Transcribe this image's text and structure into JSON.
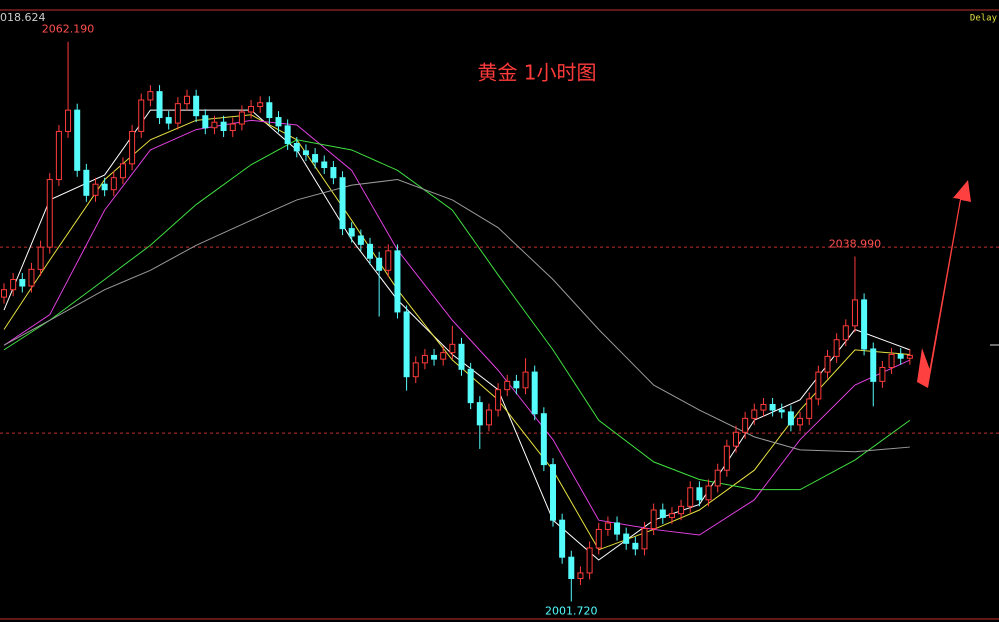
{
  "chart_data": {
    "type": "candlestick",
    "title": "黄金 1小时图",
    "corner_text": "018.624",
    "status_text": "Delay",
    "ylim": [
      1999.5,
      2066.7
    ],
    "up_color": "#ff3b3b",
    "down_color": "#54fcfc",
    "open": [
      2034.6,
      2035.4,
      2036.5,
      2035.8,
      2037.6,
      2040.0,
      2047.3,
      2052.5,
      2054.8,
      2048.3,
      2045.6,
      2046.8,
      2046.2,
      2047.5,
      2049.0,
      2052.5,
      2055.9,
      2056.8,
      2054.0,
      2053.4,
      2055.5,
      2056.3,
      2054.2,
      2052.9,
      2053.5,
      2052.6,
      2053.3,
      2054.6,
      2055.2,
      2055.6,
      2054.0,
      2053.1,
      2051.2,
      2050.4,
      2050.0,
      2049.2,
      2048.6,
      2047.5,
      2042.0,
      2041.2,
      2040.3,
      2038.8,
      2037.5,
      2039.6,
      2033.0,
      2026.0,
      2027.5,
      2028.3,
      2027.9,
      2028.6,
      2029.5,
      2026.8,
      2023.2,
      2020.8,
      2022.4,
      2024.6,
      2025.5,
      2024.8,
      2026.5,
      2022.0,
      2016.5,
      2010.5,
      2006.5,
      2004.2,
      2004.8,
      2007.5,
      2009.5,
      2010.2,
      2009.0,
      2008.0,
      2007.4,
      2009.6,
      2011.6,
      2010.8,
      2011.2,
      2012.0,
      2014.0,
      2012.7,
      2014.2,
      2015.9,
      2018.5,
      2020.0,
      2021.5,
      2022.4,
      2023.0,
      2022.4,
      2022.2,
      2020.8,
      2021.5,
      2023.6,
      2026.5,
      2028.2,
      2030.0,
      2031.5,
      2034.3,
      2029.0,
      2025.5,
      2027.0,
      2028.4,
      2028.0
    ],
    "high": [
      2036.1,
      2037.2,
      2037.2,
      2038.3,
      2040.7,
      2048.0,
      2053.2,
      2062.19,
      2055.5,
      2049.0,
      2047.5,
      2047.5,
      2048.2,
      2049.7,
      2053.2,
      2056.6,
      2057.5,
      2057.5,
      2054.7,
      2056.2,
      2057.0,
      2057.0,
      2054.9,
      2054.2,
      2054.2,
      2054.0,
      2055.3,
      2055.9,
      2056.3,
      2056.3,
      2054.7,
      2053.8,
      2051.9,
      2051.1,
      2050.7,
      2049.9,
      2049.3,
      2048.2,
      2042.7,
      2041.9,
      2041.0,
      2039.5,
      2040.3,
      2040.3,
      2033.7,
      2028.2,
      2029.0,
      2029.0,
      2029.3,
      2031.5,
      2030.2,
      2027.5,
      2023.9,
      2023.1,
      2025.3,
      2026.2,
      2026.2,
      2028.0,
      2027.2,
      2022.7,
      2017.2,
      2011.2,
      2007.2,
      2005.5,
      2008.2,
      2010.2,
      2010.9,
      2010.9,
      2009.7,
      2008.7,
      2010.3,
      2012.3,
      2012.3,
      2011.9,
      2012.7,
      2014.7,
      2014.7,
      2014.9,
      2016.6,
      2019.2,
      2020.7,
      2022.2,
      2023.1,
      2023.7,
      2023.7,
      2023.1,
      2022.9,
      2022.2,
      2024.3,
      2027.2,
      2028.9,
      2030.7,
      2032.2,
      2038.99,
      2035.0,
      2029.7,
      2027.7,
      2029.1,
      2029.1,
      2029.0
    ],
    "low": [
      2033.9,
      2034.7,
      2035.1,
      2035.1,
      2036.9,
      2039.3,
      2046.6,
      2051.8,
      2047.6,
      2044.9,
      2044.9,
      2045.5,
      2045.5,
      2046.8,
      2048.3,
      2051.8,
      2055.2,
      2053.3,
      2052.7,
      2052.7,
      2054.8,
      2053.5,
      2052.2,
      2052.2,
      2051.9,
      2051.9,
      2052.6,
      2053.9,
      2054.5,
      2053.3,
      2052.4,
      2050.5,
      2049.7,
      2049.3,
      2048.5,
      2047.9,
      2046.8,
      2041.3,
      2040.5,
      2039.6,
      2038.1,
      2032.5,
      2036.8,
      2032.3,
      2024.5,
      2025.3,
      2026.8,
      2027.2,
      2027.2,
      2027.9,
      2026.1,
      2022.5,
      2018.2,
      2020.1,
      2021.7,
      2023.9,
      2024.1,
      2024.1,
      2021.3,
      2015.8,
      2009.8,
      2005.8,
      2001.72,
      2003.5,
      2004.1,
      2006.8,
      2008.8,
      2008.3,
      2007.3,
      2006.7,
      2006.7,
      2008.9,
      2010.1,
      2010.1,
      2010.5,
      2011.3,
      2012.0,
      2012.0,
      2013.5,
      2015.2,
      2017.8,
      2019.3,
      2020.8,
      2021.7,
      2021.7,
      2021.5,
      2020.1,
      2020.1,
      2020.8,
      2022.9,
      2025.8,
      2027.5,
      2029.3,
      2030.8,
      2028.3,
      2022.8,
      2024.8,
      2026.3,
      2027.3,
      2027.3
    ],
    "close": [
      2035.4,
      2036.5,
      2035.8,
      2037.6,
      2040.0,
      2047.3,
      2052.5,
      2054.8,
      2048.3,
      2045.6,
      2046.8,
      2046.2,
      2047.5,
      2049.0,
      2052.5,
      2055.9,
      2056.8,
      2054.0,
      2053.4,
      2055.5,
      2056.3,
      2054.2,
      2052.9,
      2053.5,
      2052.6,
      2053.3,
      2054.6,
      2055.2,
      2055.6,
      2054.0,
      2053.1,
      2051.2,
      2050.4,
      2050.0,
      2049.2,
      2048.6,
      2047.5,
      2042.0,
      2041.2,
      2040.3,
      2038.8,
      2037.5,
      2039.6,
      2033.0,
      2026.0,
      2027.5,
      2028.3,
      2027.9,
      2028.6,
      2029.5,
      2026.8,
      2023.2,
      2020.8,
      2022.4,
      2024.6,
      2025.5,
      2024.8,
      2026.5,
      2022.0,
      2016.5,
      2010.5,
      2006.5,
      2004.2,
      2004.8,
      2007.5,
      2009.5,
      2010.2,
      2009.0,
      2008.0,
      2007.4,
      2009.6,
      2011.6,
      2010.8,
      2011.2,
      2012.0,
      2014.0,
      2012.7,
      2014.2,
      2015.9,
      2018.5,
      2020.0,
      2021.5,
      2022.4,
      2023.0,
      2022.4,
      2022.2,
      2020.8,
      2021.5,
      2023.6,
      2026.5,
      2028.2,
      2030.0,
      2031.5,
      2034.3,
      2029.0,
      2025.5,
      2027.0,
      2028.4,
      2028.0,
      2028.3
    ],
    "averages": {
      "x": [
        0,
        5,
        11,
        16,
        21,
        27,
        32,
        38,
        43,
        49,
        54,
        60,
        65,
        71,
        76,
        82,
        87,
        93,
        99
      ],
      "lines": [
        {
          "color": "#ffffff",
          "values": [
            2033.2,
            2045.1,
            2047.8,
            2054.8,
            2054.8,
            2054.8,
            2050.5,
            2040.8,
            2034.3,
            2028.4,
            2024.6,
            2010.5,
            2006.2,
            2010.5,
            2012.2,
            2021.3,
            2023.5,
            2031.1,
            2028.9
          ]
        },
        {
          "color": "#e8e040",
          "values": [
            2031.1,
            2038.6,
            2047.3,
            2051.6,
            2053.7,
            2054.3,
            2051.6,
            2042.9,
            2035.4,
            2027.8,
            2023.5,
            2015.9,
            2007.3,
            2009.5,
            2011.6,
            2015.9,
            2022.4,
            2028.9,
            2028.4
          ]
        },
        {
          "color": "#e040e0",
          "values": [
            2029.4,
            2032.7,
            2044.0,
            2050.5,
            2052.7,
            2053.7,
            2053.2,
            2048.3,
            2039.7,
            2032.1,
            2026.7,
            2019.2,
            2010.5,
            2009.5,
            2008.9,
            2012.7,
            2019.2,
            2025.1,
            2027.8
          ]
        },
        {
          "color": "#40e040",
          "values": [
            2028.9,
            2032.1,
            2036.5,
            2040.2,
            2044.6,
            2048.9,
            2051.6,
            2050.5,
            2048.3,
            2044.0,
            2037.0,
            2028.9,
            2021.3,
            2016.8,
            2014.9,
            2013.8,
            2013.8,
            2017.0,
            2021.3
          ]
        },
        {
          "color": "#9a9a9a",
          "values": [
            2029.4,
            2032.1,
            2035.4,
            2037.5,
            2040.2,
            2042.9,
            2045.1,
            2046.7,
            2047.3,
            2045.1,
            2042.1,
            2036.5,
            2031.1,
            2025.1,
            2022.4,
            2019.5,
            2018.1,
            2017.9,
            2018.4
          ]
        }
      ]
    },
    "levels": [
      2040.0,
      2019.9
    ],
    "level_color": "#c03030",
    "extreme_labels": [
      {
        "value": 2062.19,
        "label": "2062.190"
      },
      {
        "value": 2038.99,
        "label": "2038.990"
      },
      {
        "value": 2001.72,
        "label": "2001.720"
      }
    ]
  }
}
